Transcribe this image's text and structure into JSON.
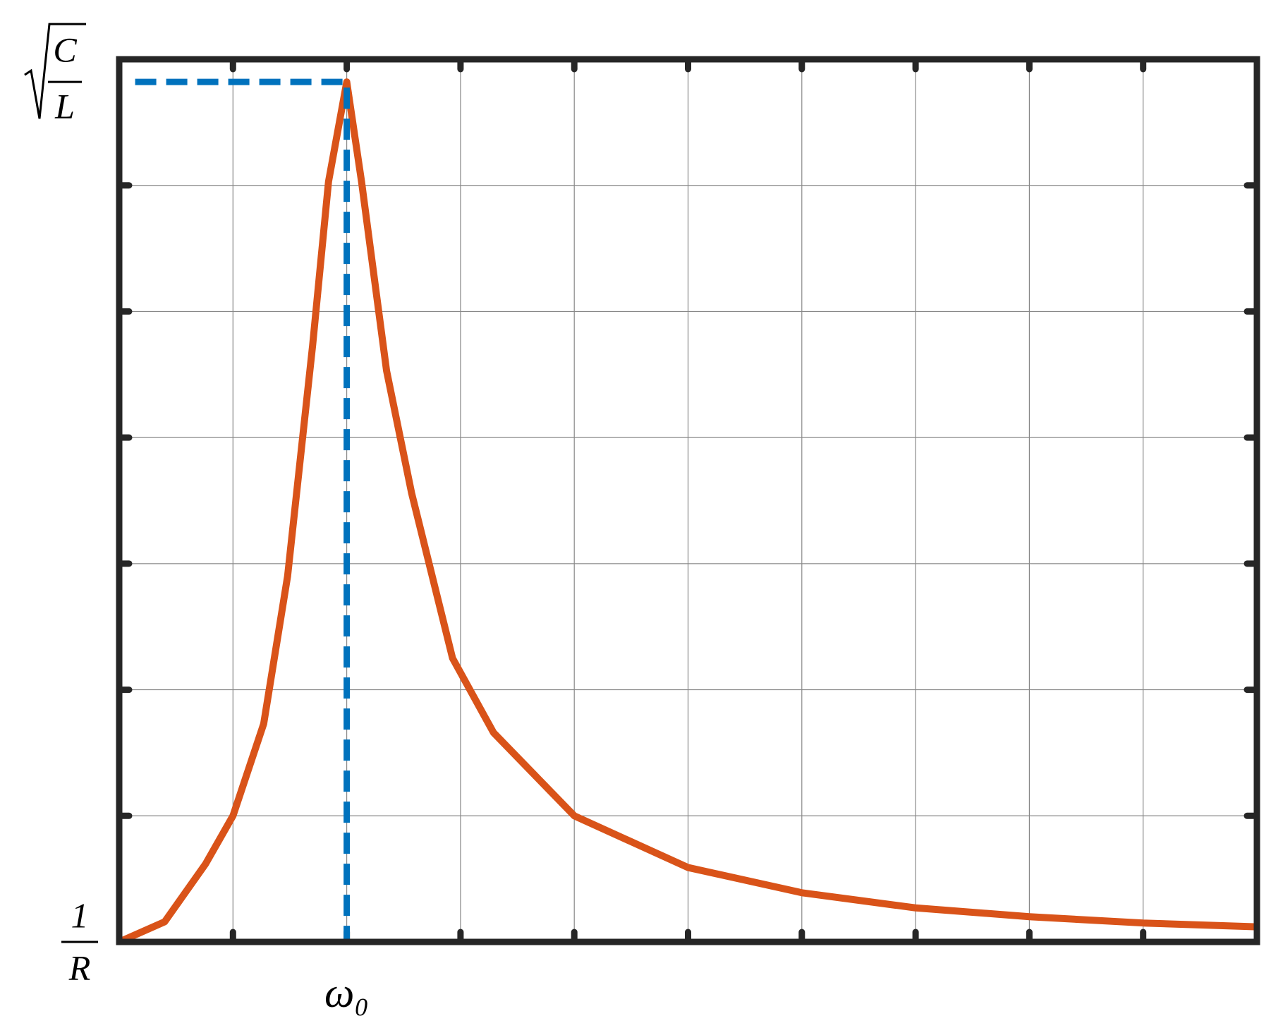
{
  "chart_data": {
    "type": "line",
    "xlim": [
      0,
      10
    ],
    "ylim": [
      0,
      7
    ],
    "xgrid": [
      0,
      1,
      2,
      3,
      4,
      5,
      6,
      7,
      8,
      9,
      10
    ],
    "ygrid": [
      0,
      1,
      2,
      3,
      4,
      5,
      6,
      7
    ],
    "xticks": [
      {
        "value": 2,
        "label": "ω₀"
      }
    ],
    "yticks": [
      {
        "value": 0,
        "label": {
          "numerator": "1",
          "denominator": "R"
        }
      },
      {
        "value": 6.82,
        "label": {
          "radicand_numerator": "C",
          "radicand_denominator": "L"
        }
      }
    ],
    "grid": true,
    "series": [
      {
        "color": "#d95319",
        "dashed": false,
        "x": [
          0,
          0.4,
          0.76,
          1.0,
          1.27,
          1.48,
          1.7,
          1.84,
          2,
          2.13,
          2.35,
          2.57,
          2.93,
          3.29,
          4.0,
          5.0,
          6,
          7,
          8,
          9,
          10
        ],
        "values": [
          0,
          0.16,
          0.62,
          1.0,
          1.73,
          2.9,
          4.73,
          6.03,
          6.82,
          6.03,
          4.53,
          3.56,
          2.25,
          1.66,
          1.0,
          0.59,
          0.39,
          0.27,
          0.2,
          0.15,
          0.12
        ]
      },
      {
        "color": "#0072bd",
        "dashed": true,
        "x": [
          0.14,
          2,
          2
        ],
        "values": [
          6.82,
          6.82,
          0
        ]
      }
    ]
  }
}
